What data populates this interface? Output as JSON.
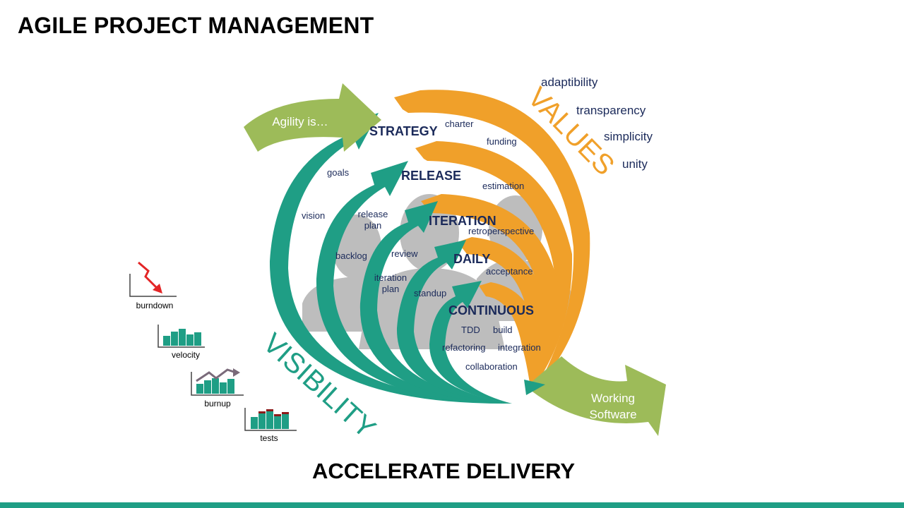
{
  "title": "AGILE PROJECT MANAGEMENT",
  "footer_title": "ACCELERATE DELIVERY",
  "colors": {
    "teal": "#1f9e85",
    "orange": "#f0a02a",
    "green": "#9dbb59",
    "navy": "#1b2a5a",
    "gray": "#bdbdbd",
    "red": "#e32526",
    "darkred": "#8e1a1a"
  },
  "entry_arrow": {
    "label": "Agility is…"
  },
  "exit_arrow": {
    "label_line1": "Working",
    "label_line2": "Software"
  },
  "levels": {
    "strategy": "STRATEGY",
    "release": "RELEASE",
    "iteration": "ITERATION",
    "daily": "DAILY",
    "continuous": "CONTINUOUS"
  },
  "practices": {
    "charter": "charter",
    "funding": "funding",
    "goals": "goals",
    "estimation": "estimation",
    "vision": "vision",
    "release_plan_1": "release",
    "release_plan_2": "plan",
    "retrospective": "retroperspective",
    "backlog": "backlog",
    "review": "review",
    "acceptance": "acceptance",
    "iteration_plan_1": "iteration",
    "iteration_plan_2": "plan",
    "standup": "standup",
    "tdd": "TDD",
    "build": "build",
    "refactoring": "refactoring",
    "integration": "integration",
    "collaboration": "collaboration"
  },
  "values_heading": "VALUES",
  "values": [
    "adaptibility",
    "transparency",
    "simplicity",
    "unity"
  ],
  "visibility_heading": "VISIBILITY",
  "metrics": [
    "burndown",
    "velocity",
    "burnup",
    "tests"
  ]
}
